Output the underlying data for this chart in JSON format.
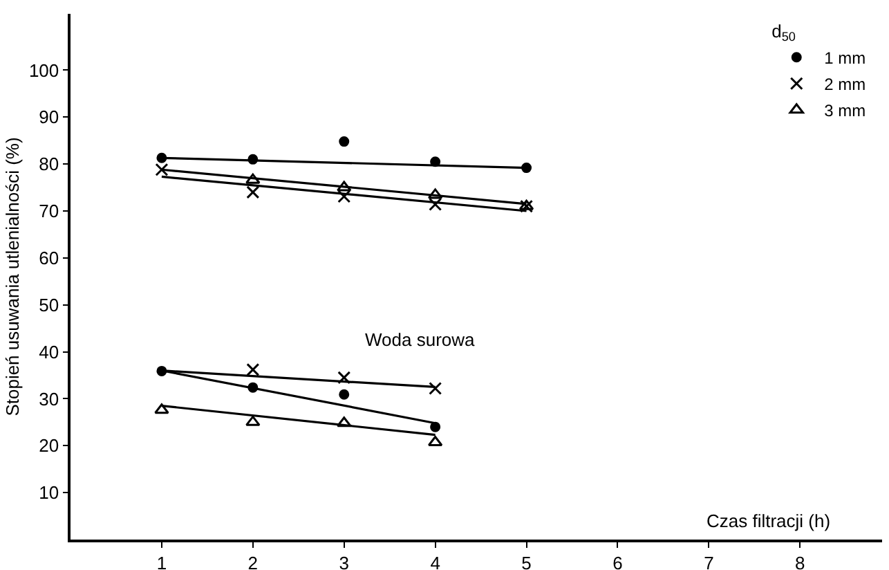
{
  "chart_data": {
    "type": "scatter",
    "xlabel": "Czas filtracji (h)",
    "ylabel": "Stopień usuwania utlenialności (%)",
    "legend_title": "d$_{50}$",
    "legend": "top right",
    "grid": false,
    "xlim": [
      0,
      8.9
    ],
    "xticks": [
      1,
      2,
      3,
      4,
      5,
      6,
      7,
      8
    ],
    "ylim": [
      0,
      112
    ],
    "yticks": [
      10,
      20,
      30,
      40,
      50,
      60,
      70,
      80,
      90,
      100
    ],
    "annotations": [
      "Woda surowa"
    ],
    "series": [
      {
        "name": "1 mm",
        "color": "#000000",
        "marker": "circle",
        "x": [
          1,
          2,
          3,
          4,
          5
        ],
        "values": [
          81.3,
          81,
          84.8,
          80.5,
          79.2
        ]
      },
      {
        "name": "2 mm",
        "color": "#000000",
        "marker": "cross",
        "x": [
          1,
          2,
          3,
          4,
          5
        ],
        "values": [
          78.8,
          74,
          73.1,
          71.4,
          71
        ]
      },
      {
        "name": "3 mm",
        "color": "#000000",
        "marker": "triangle",
        "x": [
          2,
          3,
          4,
          5
        ],
        "values": [
          76.6,
          75,
          73.4,
          71
        ]
      },
      {
        "color": "#000000",
        "marker": "circle",
        "x": [
          1,
          2,
          3,
          4
        ],
        "values": [
          35.9,
          32.4,
          30.9,
          24
        ]
      },
      {
        "color": "#000000",
        "marker": "cross",
        "x": [
          2,
          3,
          4
        ],
        "values": [
          36.2,
          34.5,
          32.2
        ]
      },
      {
        "color": "#000000",
        "marker": "triangle",
        "x": [
          1,
          2,
          3,
          4
        ],
        "values": [
          27.6,
          25,
          24.8,
          20.7
        ]
      },
      {
        "type": "line",
        "color": "#000000",
        "marker": "none",
        "line_style": "solid",
        "x": [
          1,
          5
        ],
        "values": [
          81.3,
          79.2
        ]
      },
      {
        "type": "line",
        "color": "#000000",
        "marker": "none",
        "line_style": "solid",
        "x": [
          1,
          5
        ],
        "values": [
          78.8,
          71.5
        ]
      },
      {
        "type": "line",
        "color": "#000000",
        "marker": "none",
        "line_style": "solid",
        "x": [
          1,
          5
        ],
        "values": [
          77.3,
          70
        ]
      },
      {
        "type": "line",
        "color": "#000000",
        "marker": "none",
        "line_style": "solid",
        "x": [
          1,
          4
        ],
        "values": [
          36,
          24.8
        ]
      },
      {
        "type": "line",
        "color": "#000000",
        "marker": "none",
        "line_style": "solid",
        "x": [
          1,
          4
        ],
        "values": [
          36,
          32.5
        ]
      },
      {
        "type": "line",
        "color": "#000000",
        "marker": "none",
        "line_style": "solid",
        "x": [
          1,
          4
        ],
        "values": [
          28.5,
          22.3
        ]
      }
    ]
  }
}
